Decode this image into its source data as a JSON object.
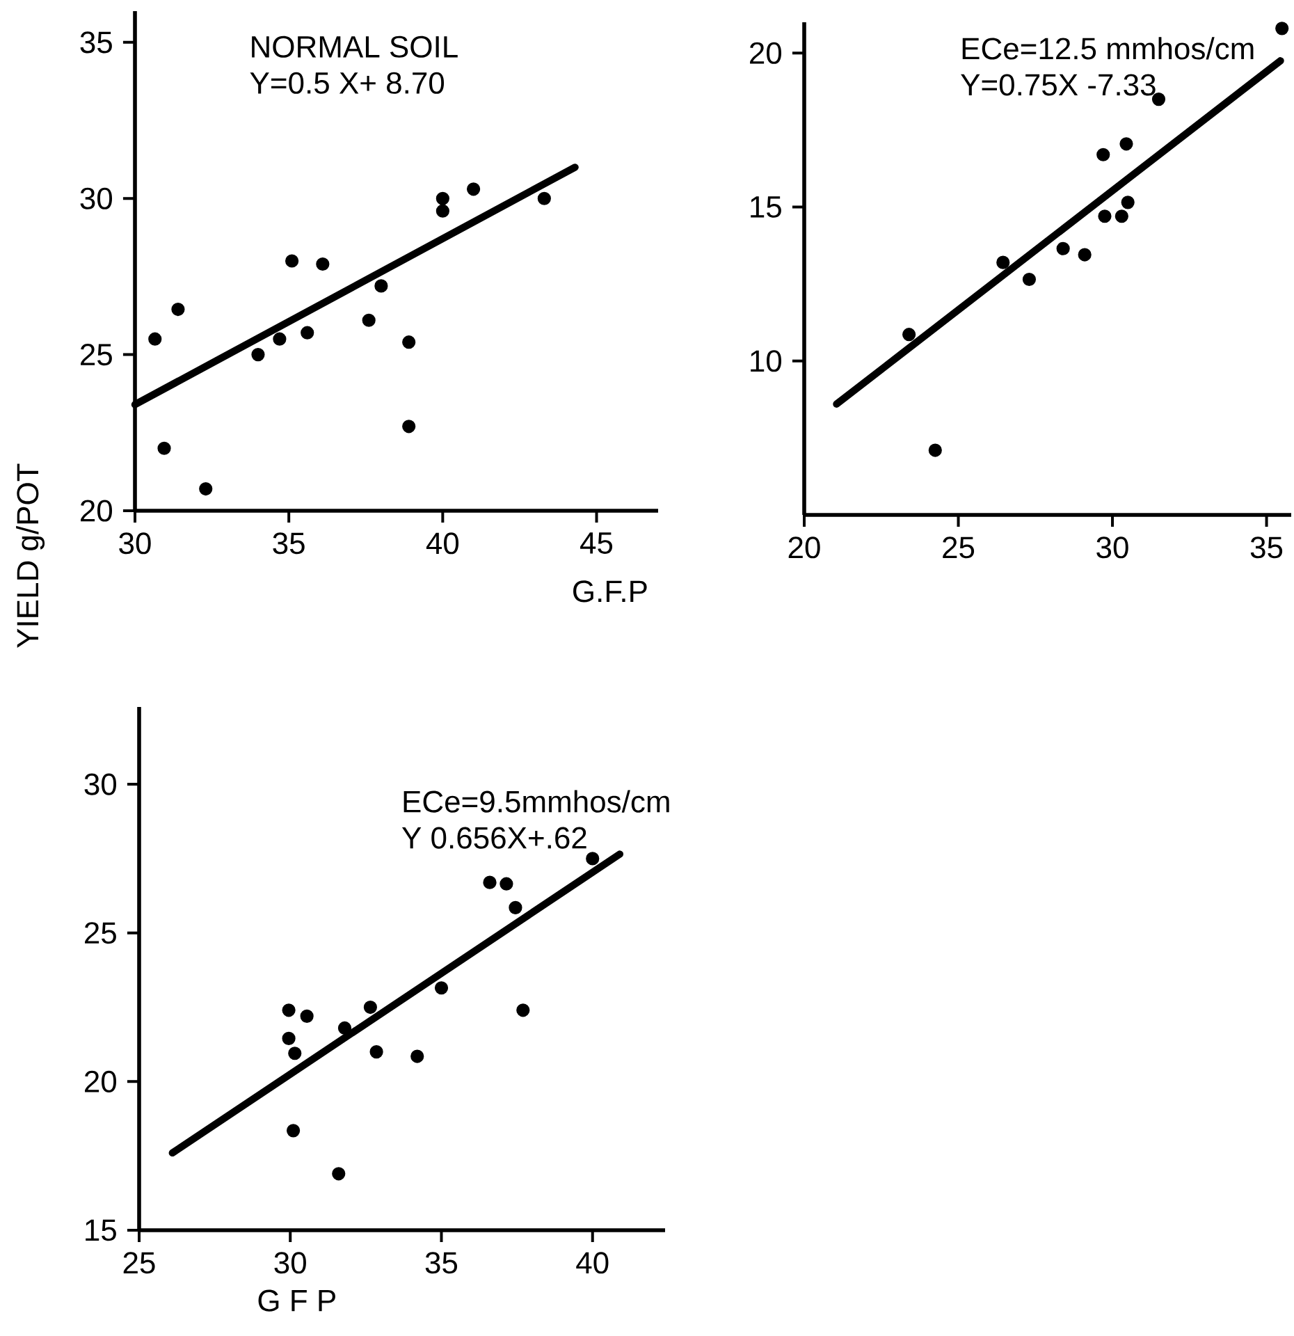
{
  "chart_data": [
    {
      "type": "scatter",
      "xlabel": "G.F.P",
      "ylabel": "YIELD g/POT",
      "annotations": [
        "NORMAL SOIL",
        "Y=0.5 X+ 8.70"
      ],
      "xlim": [
        30,
        47
      ],
      "ylim": [
        20,
        36
      ],
      "xticks": [
        30,
        35,
        40,
        45
      ],
      "yticks": [
        20,
        25,
        30,
        35
      ],
      "series": [
        {
          "color": "#000000",
          "marker": "circle",
          "x": [
            30.65,
            31.4,
            30.95,
            32.3,
            34.0,
            34.7,
            35.1,
            35.6,
            36.1,
            37.6,
            38.0,
            38.9,
            38.9,
            40.0,
            40.0,
            41.0,
            43.3
          ],
          "values": [
            25.5,
            26.45,
            22.0,
            20.7,
            25.0,
            25.5,
            28.0,
            25.7,
            27.9,
            26.1,
            27.2,
            25.4,
            22.7,
            30.0,
            29.6,
            30.3,
            30.0
          ]
        },
        {
          "type": "line",
          "color": "#000000",
          "line_style": "solid",
          "x": [
            30,
            44.3
          ],
          "values": [
            23.4,
            31.0
          ]
        }
      ]
    },
    {
      "type": "scatter",
      "annotations": [
        "ECe=12.5 mmhos/cm",
        "Y=0.75X -7.33"
      ],
      "xlim": [
        20,
        35.8
      ],
      "ylim": [
        5,
        21
      ],
      "xticks": [
        20,
        25,
        30,
        35
      ],
      "yticks": [
        10,
        15,
        20
      ],
      "series": [
        {
          "color": "#000000",
          "marker": "circle",
          "x": [
            23.4,
            24.25,
            26.45,
            27.3,
            28.4,
            29.1,
            29.7,
            29.75,
            30.3,
            30.45,
            30.5,
            31.5,
            35.5
          ],
          "values": [
            10.86,
            7.1,
            13.2,
            12.65,
            13.65,
            13.45,
            16.7,
            14.7,
            14.7,
            17.05,
            15.15,
            18.5,
            20.8
          ]
        },
        {
          "type": "line",
          "color": "#000000",
          "line_style": "solid",
          "x": [
            21.05,
            35.45
          ],
          "values": [
            8.6,
            19.75
          ]
        }
      ]
    },
    {
      "type": "scatter",
      "xlabel": "G F P",
      "annotations": [
        "ECe=9.5mmhos/cm",
        "Y 0.656X+.62"
      ],
      "xlim": [
        25,
        42.4
      ],
      "ylim": [
        15,
        32.6
      ],
      "xticks": [
        25,
        30,
        35,
        40
      ],
      "yticks": [
        15,
        20,
        25,
        30
      ],
      "series": [
        {
          "color": "#000000",
          "marker": "circle",
          "x": [
            29.95,
            30.55,
            29.95,
            30.15,
            30.1,
            31.8,
            32.65,
            32.85,
            34.2,
            35.0,
            31.6,
            36.6,
            37.15,
            37.45,
            37.7,
            40.0
          ],
          "values": [
            22.4,
            22.2,
            21.45,
            20.95,
            18.35,
            21.8,
            22.5,
            21.0,
            20.85,
            23.15,
            16.9,
            26.7,
            26.65,
            25.85,
            22.4,
            27.5
          ]
        },
        {
          "type": "line",
          "color": "#000000",
          "line_style": "solid",
          "x": [
            26.1,
            40.9
          ],
          "values": [
            17.6,
            27.65
          ]
        }
      ]
    }
  ]
}
